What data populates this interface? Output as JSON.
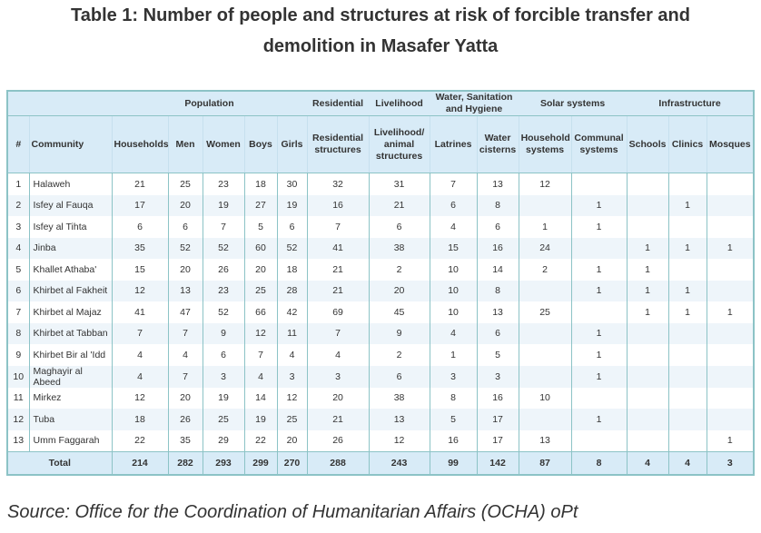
{
  "title": {
    "line1": "Table 1: Number of people and structures at risk of forcible transfer and",
    "line2": "demolition in Masafer Yatta"
  },
  "groups": {
    "population": "Population",
    "residential": "Residential",
    "livelihood": "Livelihood",
    "wash": "Water, Sanitation and Hygiene",
    "solar": "Solar systems",
    "infrastructure": "Infrastructure"
  },
  "columns": [
    "#",
    "Community",
    "Households",
    "Men",
    "Women",
    "Boys",
    "Girls",
    "Residential structures",
    "Livelihood/ animal structures",
    "Latrines",
    "Water cisterns",
    "Household systems",
    "Communal systems",
    "Schools",
    "Clinics",
    "Mosques"
  ],
  "rows": [
    [
      "1",
      "Halaweh",
      "21",
      "25",
      "23",
      "18",
      "30",
      "32",
      "31",
      "7",
      "13",
      "12",
      "",
      "",
      "",
      ""
    ],
    [
      "2",
      "Isfey al Fauqa",
      "17",
      "20",
      "19",
      "27",
      "19",
      "16",
      "21",
      "6",
      "8",
      "",
      "1",
      "",
      "1",
      ""
    ],
    [
      "3",
      "Isfey al Tihta",
      "6",
      "6",
      "7",
      "5",
      "6",
      "7",
      "6",
      "4",
      "6",
      "1",
      "1",
      "",
      "",
      ""
    ],
    [
      "4",
      "Jinba",
      "35",
      "52",
      "52",
      "60",
      "52",
      "41",
      "38",
      "15",
      "16",
      "24",
      "",
      "1",
      "1",
      "1"
    ],
    [
      "5",
      "Khallet Athaba'",
      "15",
      "20",
      "26",
      "20",
      "18",
      "21",
      "2",
      "10",
      "14",
      "2",
      "1",
      "1",
      "",
      ""
    ],
    [
      "6",
      "Khirbet al Fakheit",
      "12",
      "13",
      "23",
      "25",
      "28",
      "21",
      "20",
      "10",
      "8",
      "",
      "1",
      "1",
      "1",
      ""
    ],
    [
      "7",
      "Khirbet al Majaz",
      "41",
      "47",
      "52",
      "66",
      "42",
      "69",
      "45",
      "10",
      "13",
      "25",
      "",
      "1",
      "1",
      "1"
    ],
    [
      "8",
      "Khirbet at Tabban",
      "7",
      "7",
      "9",
      "12",
      "11",
      "7",
      "9",
      "4",
      "6",
      "",
      "1",
      "",
      "",
      ""
    ],
    [
      "9",
      "Khirbet Bir al 'Idd",
      "4",
      "4",
      "6",
      "7",
      "4",
      "4",
      "2",
      "1",
      "5",
      "",
      "1",
      "",
      "",
      ""
    ],
    [
      "10",
      "Maghayir al Abeed",
      "4",
      "7",
      "3",
      "4",
      "3",
      "3",
      "6",
      "3",
      "3",
      "",
      "1",
      "",
      "",
      ""
    ],
    [
      "11",
      "Mirkez",
      "12",
      "20",
      "19",
      "14",
      "12",
      "20",
      "38",
      "8",
      "16",
      "10",
      "",
      "",
      "",
      ""
    ],
    [
      "12",
      "Tuba",
      "18",
      "26",
      "25",
      "19",
      "25",
      "21",
      "13",
      "5",
      "17",
      "",
      "1",
      "",
      "",
      ""
    ],
    [
      "13",
      "Umm Faggarah",
      "22",
      "35",
      "29",
      "22",
      "20",
      "26",
      "12",
      "16",
      "17",
      "13",
      "",
      "",
      "",
      "1"
    ]
  ],
  "total": {
    "label": "Total",
    "values": [
      "214",
      "282",
      "293",
      "299",
      "270",
      "288",
      "243",
      "99",
      "142",
      "87",
      "8",
      "4",
      "4",
      "3"
    ]
  },
  "source": "Source: Office for the Coordination of Humanitarian Affairs (OCHA) oPt"
}
